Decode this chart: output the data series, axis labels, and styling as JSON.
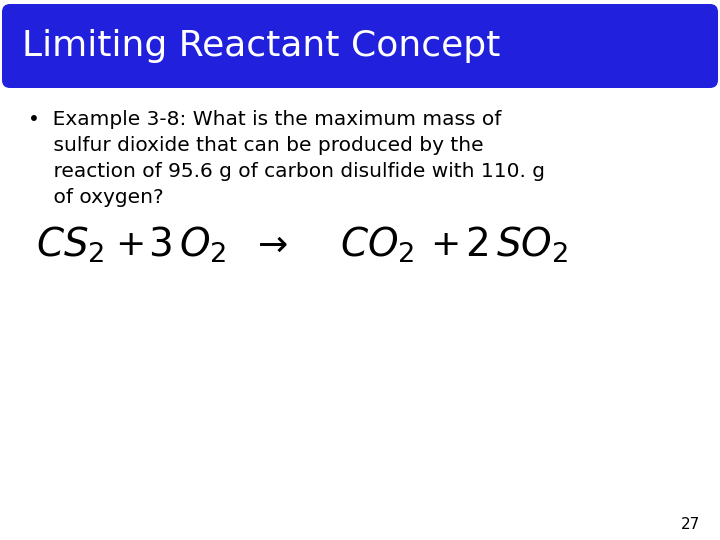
{
  "title": "Limiting Reactant Concept",
  "title_color": "#ffffff",
  "title_bg_color": "#2020dd",
  "bullet_line1": "•  Example 3-8: What is the maximum mass of",
  "bullet_line2": "    sulfur dioxide that can be produced by the",
  "bullet_line3": "    reaction of 95.6 g of carbon disulfide with 110. g",
  "bullet_line4": "    of oxygen?",
  "page_number": "27",
  "background_color": "#ffffff",
  "text_color": "#000000",
  "bullet_fontsize": 14.5,
  "title_fontsize": 26,
  "equation_fontsize": 26,
  "page_fontsize": 11
}
